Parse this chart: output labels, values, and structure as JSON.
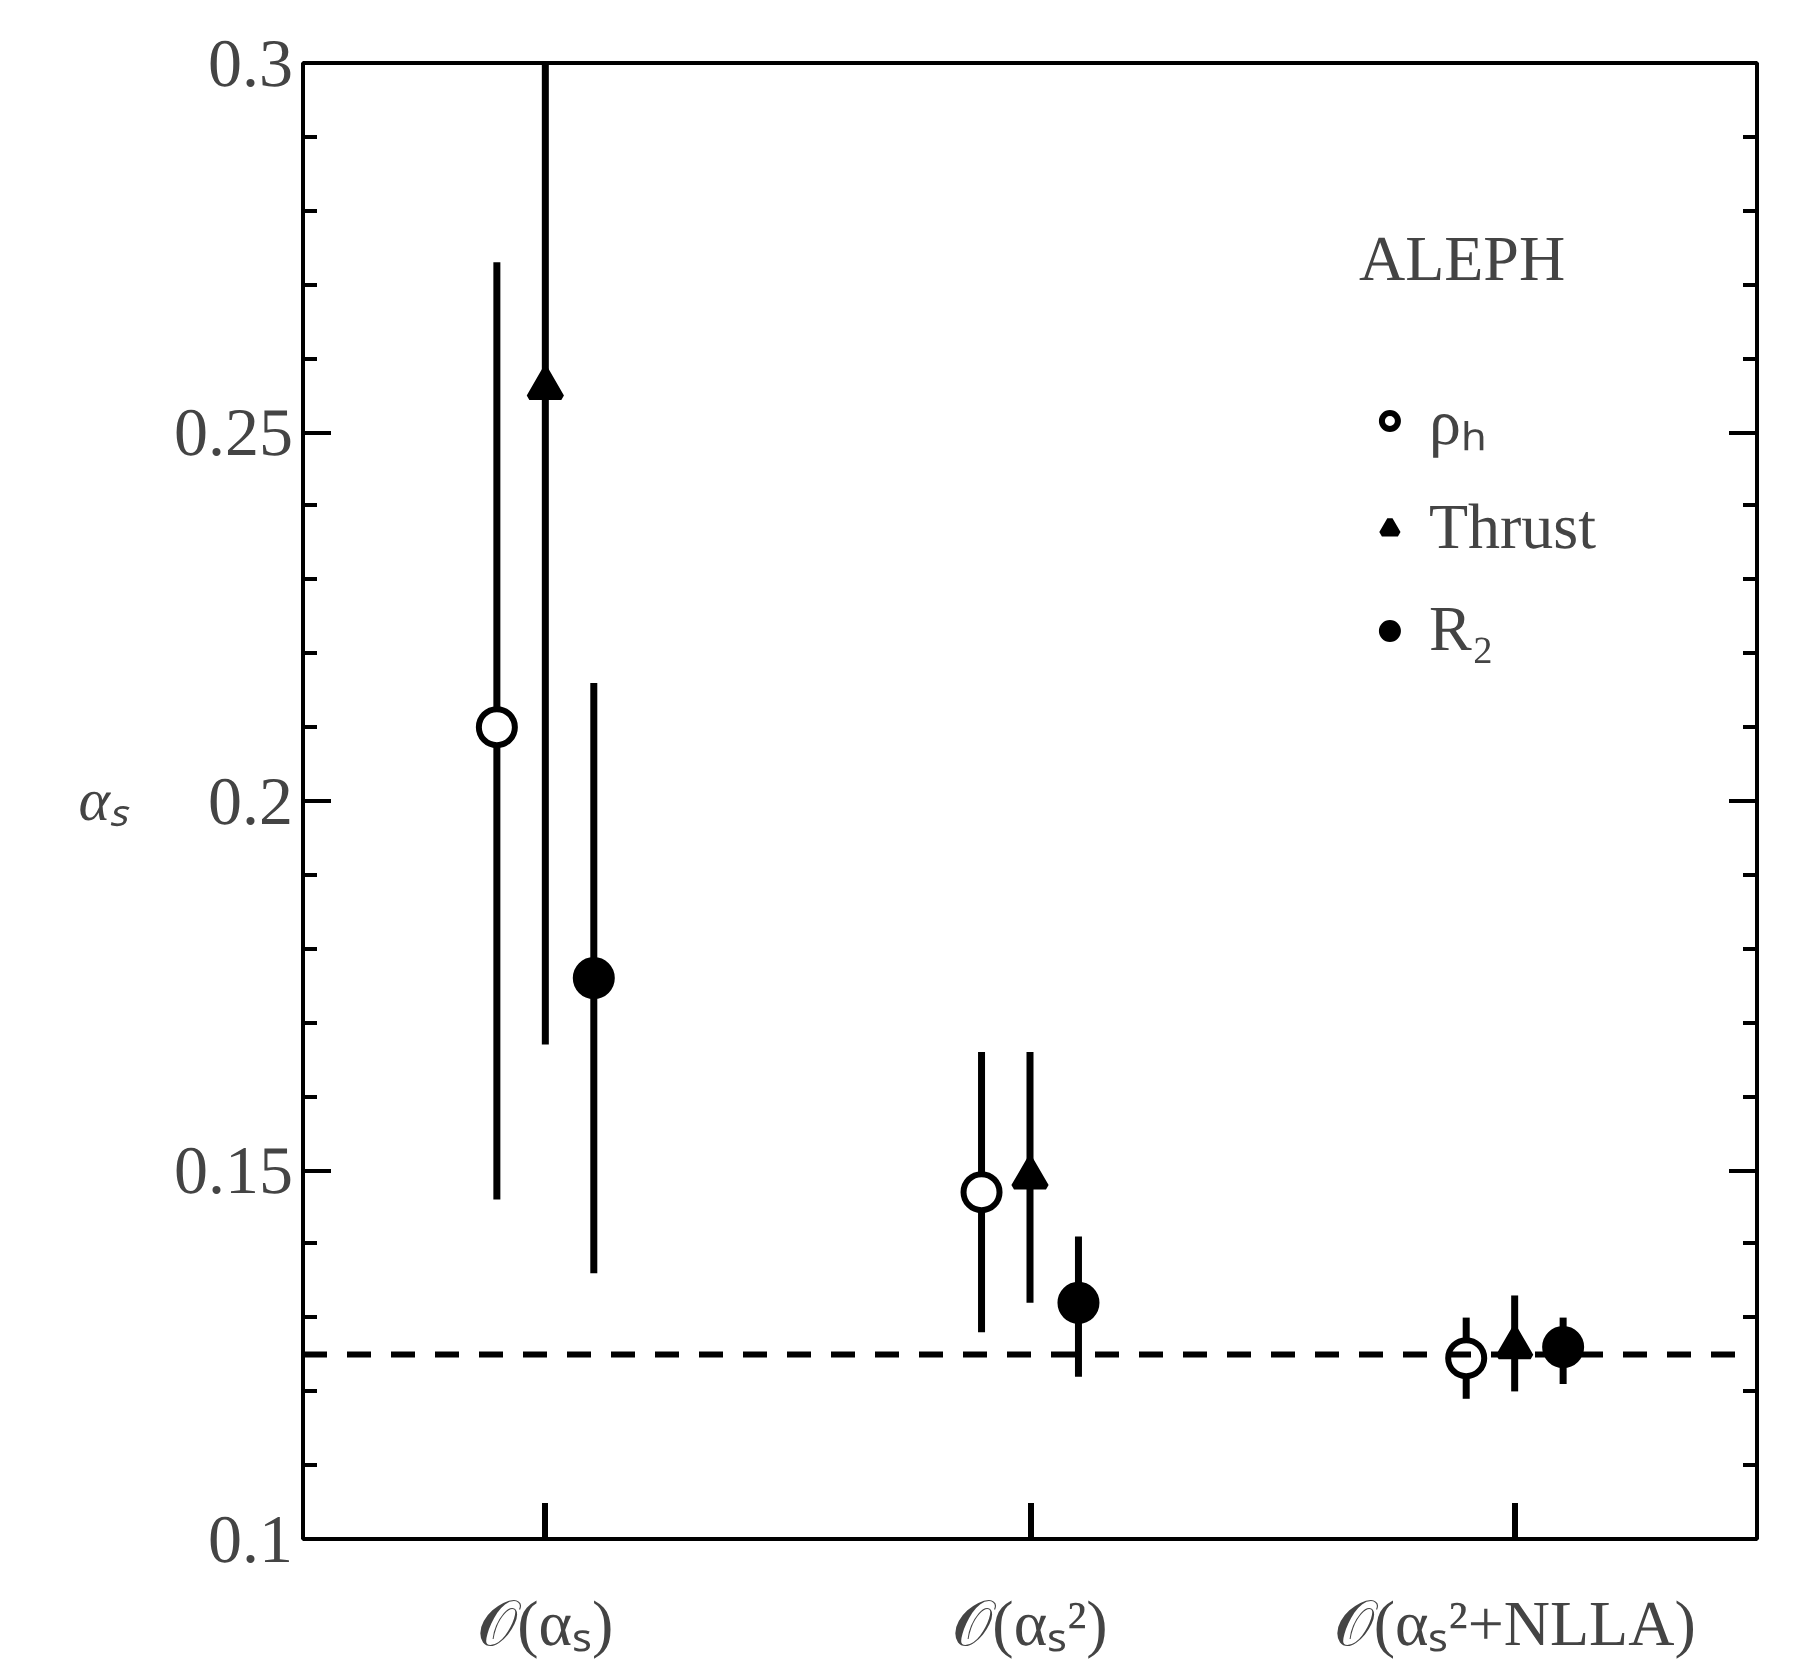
{
  "chart_data": {
    "type": "scatter",
    "ylabel": "αₛ",
    "legend_title": "ALEPH",
    "categories": [
      "𝒪(αₛ)",
      "𝒪(αₛ²)",
      "𝒪(αₛ²+NLLA)"
    ],
    "series": [
      {
        "name": "ρₕ",
        "color": "#000000",
        "marker": "circle_open",
        "values": [
          0.21,
          0.147,
          0.1245
        ],
        "errors": [
          [
            0.146,
            0.273
          ],
          [
            0.128,
            0.166
          ],
          [
            0.119,
            0.13
          ]
        ]
      },
      {
        "name": "Thrust",
        "color": "#000000",
        "marker": "triangle",
        "values": [
          0.256,
          0.149,
          0.126
        ],
        "errors": [
          [
            0.167,
            0.3
          ],
          [
            0.132,
            0.166
          ],
          [
            0.12,
            0.133
          ]
        ]
      },
      {
        "name": "R₂",
        "color": "#000000",
        "marker": "circle",
        "values": [
          0.176,
          0.132,
          0.126
        ],
        "errors": [
          [
            0.136,
            0.216
          ],
          [
            0.122,
            0.141
          ],
          [
            0.121,
            0.13
          ]
        ]
      }
    ],
    "ylim": [
      0.1,
      0.3
    ],
    "yticks": [
      0.1,
      {
        "value": 0.11,
        "label": null
      },
      {
        "value": 0.12,
        "label": null
      },
      {
        "value": 0.13,
        "label": null
      },
      {
        "value": 0.14,
        "label": null
      },
      0.15,
      {
        "value": 0.16,
        "label": null
      },
      {
        "value": 0.17,
        "label": null
      },
      {
        "value": 0.18,
        "label": null
      },
      {
        "value": 0.19,
        "label": null
      },
      0.2,
      {
        "value": 0.21,
        "label": null
      },
      {
        "value": 0.22,
        "label": null
      },
      {
        "value": 0.23,
        "label": null
      },
      {
        "value": 0.24,
        "label": null
      },
      0.25,
      {
        "value": 0.26,
        "label": null
      },
      {
        "value": 0.27,
        "label": null
      },
      {
        "value": 0.28,
        "label": null
      },
      {
        "value": 0.29,
        "label": null
      },
      0.3
    ],
    "ref_lines": [
      {
        "axis": "y",
        "value": 0.125,
        "color": "#000000",
        "line_style": "dashed"
      }
    ],
    "legend": "top right",
    "grid": false
  }
}
